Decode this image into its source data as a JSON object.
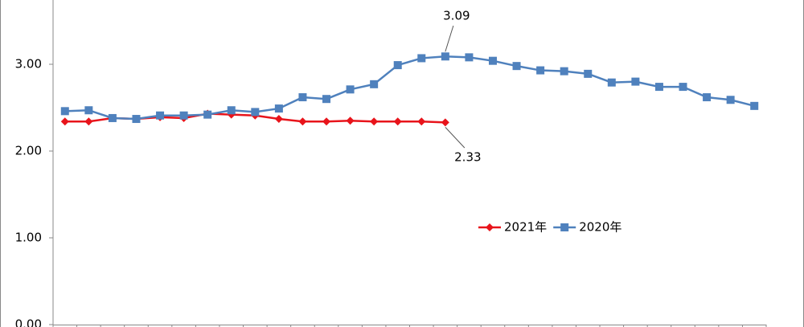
{
  "chart_data": {
    "type": "line",
    "categories": [
      null,
      null,
      null,
      null,
      null,
      null,
      null,
      null,
      null,
      null,
      null,
      null,
      null,
      null,
      null,
      null,
      null,
      null,
      null,
      null,
      null,
      null,
      null,
      null,
      null,
      null,
      null,
      null,
      null,
      null
    ],
    "series": [
      {
        "name": "2021年",
        "color": "#e8141b",
        "marker": "diamond",
        "label_index": 16,
        "values": [
          2.34,
          2.34,
          2.38,
          2.37,
          2.39,
          2.38,
          2.43,
          2.42,
          2.41,
          2.37,
          2.34,
          2.34,
          2.35,
          2.34,
          2.34,
          2.34,
          2.33,
          null,
          null,
          null,
          null,
          null,
          null,
          null,
          null,
          null,
          null,
          null,
          null,
          null
        ]
      },
      {
        "name": "2020年",
        "color": "#4f81bd",
        "marker": "square",
        "label_index": 16,
        "values": [
          2.46,
          2.47,
          2.38,
          2.37,
          2.41,
          2.41,
          2.42,
          2.47,
          2.45,
          2.49,
          2.62,
          2.6,
          2.71,
          2.77,
          2.99,
          3.07,
          3.09,
          3.08,
          3.04,
          2.98,
          2.93,
          2.92,
          2.89,
          2.79,
          2.8,
          2.74,
          2.74,
          2.62,
          2.59,
          2.52
        ]
      }
    ],
    "ylim": [
      0,
      3.75
    ],
    "yticks": [
      {
        "value": 0,
        "label": "0.00"
      },
      {
        "value": 1,
        "label": "1.00"
      },
      {
        "value": 2,
        "label": "2.00"
      },
      {
        "value": 3,
        "label": "3.00"
      }
    ],
    "legend": "right"
  }
}
